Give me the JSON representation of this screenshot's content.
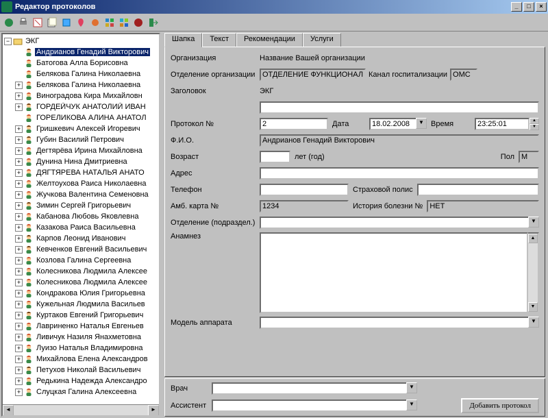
{
  "window": {
    "title": "Редактор протоколов"
  },
  "tree": {
    "root": "ЭКГ",
    "root_expanded": true,
    "items": [
      {
        "name": "Андрианов Генадий Викторович",
        "gender": "m",
        "plus": false,
        "selected": true
      },
      {
        "name": "Батогова Алла Борисовна",
        "gender": "f",
        "plus": false
      },
      {
        "name": "Белякова Галина Николаевна",
        "gender": "f",
        "plus": false
      },
      {
        "name": "Белякова Галина Николаевна",
        "gender": "f",
        "plus": true
      },
      {
        "name": "Виноградова Кира Михайловн",
        "gender": "f",
        "plus": true
      },
      {
        "name": "ГОРДЕЙЧУК АНАТОЛИЙ ИВАН",
        "gender": "m",
        "plus": true
      },
      {
        "name": "ГОРЕЛИКОВА  АЛИНА АНАТОЛ",
        "gender": "f",
        "plus": false
      },
      {
        "name": "Гришкевич Алексей Игоревич",
        "gender": "m",
        "plus": true
      },
      {
        "name": "Губин Василий Петрович",
        "gender": "m",
        "plus": true
      },
      {
        "name": "Дегтярёва Ирина Михайловна",
        "gender": "f",
        "plus": true
      },
      {
        "name": "Дунина Нина Дмитриевна",
        "gender": "f",
        "plus": true
      },
      {
        "name": "ДЯГТЯРЕВА НАТАЛЬЯ АНАТО",
        "gender": "f",
        "plus": true
      },
      {
        "name": "Желтоухова Раиса Николаевна",
        "gender": "f",
        "plus": true
      },
      {
        "name": "Жучкова Валентина Семеновна",
        "gender": "f",
        "plus": true
      },
      {
        "name": "Зимин Сергей Григорьевич",
        "gender": "m",
        "plus": true
      },
      {
        "name": "Кабанова Любовь Яковлевна",
        "gender": "f",
        "plus": true
      },
      {
        "name": "Казакова Раиса Васильевна",
        "gender": "f",
        "plus": true
      },
      {
        "name": "Карпов Леонид Иванович",
        "gender": "m",
        "plus": true
      },
      {
        "name": "Кевченков Евгений Васильевич",
        "gender": "m",
        "plus": true
      },
      {
        "name": "Козлова Галина Сергеевна",
        "gender": "f",
        "plus": true
      },
      {
        "name": "Колесникова Людмила Алексее",
        "gender": "f",
        "plus": true
      },
      {
        "name": "Колесникова Людмила Алексее",
        "gender": "f",
        "plus": true
      },
      {
        "name": "Кондракова Юлия Григорьевна",
        "gender": "f",
        "plus": true
      },
      {
        "name": "Кужельная Людмила Васильев",
        "gender": "f",
        "plus": true
      },
      {
        "name": "Куртаков Евгений Григорьевич",
        "gender": "m",
        "plus": true
      },
      {
        "name": "Лавриненко Наталья Евгеньев",
        "gender": "f",
        "plus": true
      },
      {
        "name": "Ливичук Назиля Янахметовна",
        "gender": "f",
        "plus": true
      },
      {
        "name": "Луизо Наталья Владимировна",
        "gender": "f",
        "plus": true
      },
      {
        "name": "Михайлова Елена Александров",
        "gender": "f",
        "plus": true
      },
      {
        "name": "Петухов Николай Васильевич",
        "gender": "m",
        "plus": true
      },
      {
        "name": "Редькина Надежда Александро",
        "gender": "f",
        "plus": true
      },
      {
        "name": "Слуцкая Галина Алексеевна",
        "gender": "f",
        "plus": true
      }
    ]
  },
  "tabs": [
    "Шапка",
    "Текст",
    "Рекомендации",
    "Услуги"
  ],
  "tabs_active": 0,
  "form": {
    "org_label": "Организация",
    "org_value": "Название Вашей организации",
    "dept_label": "Отделение организации",
    "dept_value": "ОТДЕЛЕНИЕ ФУНКЦИОНАЛ",
    "hosp_channel_label": "Канал госпитализации",
    "hosp_channel_value": "ОМС",
    "title_label": "Заголовок",
    "title_value": "ЭКГ",
    "title_extra": "",
    "protocol_no_label": "Протокол №",
    "protocol_no_value": "2",
    "date_label": "Дата",
    "date_value": "18.02.2008",
    "time_label": "Время",
    "time_value": "23:25:01",
    "fio_label": "Ф.И.О.",
    "fio_value": "Андрианов Генадий Викторович",
    "age_label": "Возраст",
    "age_value": "",
    "age_unit": "лет (год)",
    "sex_label": "Пол",
    "sex_value": "М",
    "address_label": "Адрес",
    "address_value": "",
    "phone_label": "Телефон",
    "phone_value": "",
    "insurance_label": "Страховой полис",
    "insurance_value": "",
    "card_label": "Амб. карта №",
    "card_value": "1234",
    "history_label": "История болезни №",
    "history_value": "НЕТ",
    "subdiv_label": "Отделение (подраздел.)",
    "subdiv_value": "",
    "anamnesis_label": "Анамнез",
    "anamnesis_value": "",
    "device_label": "Модель аппарата",
    "device_value": "",
    "doctor_label": "Врач",
    "doctor_value": "",
    "assistant_label": "Ассистент",
    "assistant_value": "",
    "add_btn": "Добавить протокол"
  },
  "colors": {
    "titlebar_left": "#0a246a",
    "titlebar_right": "#a6caf0",
    "face": "#c0c0c0",
    "selection": "#0a246a"
  }
}
